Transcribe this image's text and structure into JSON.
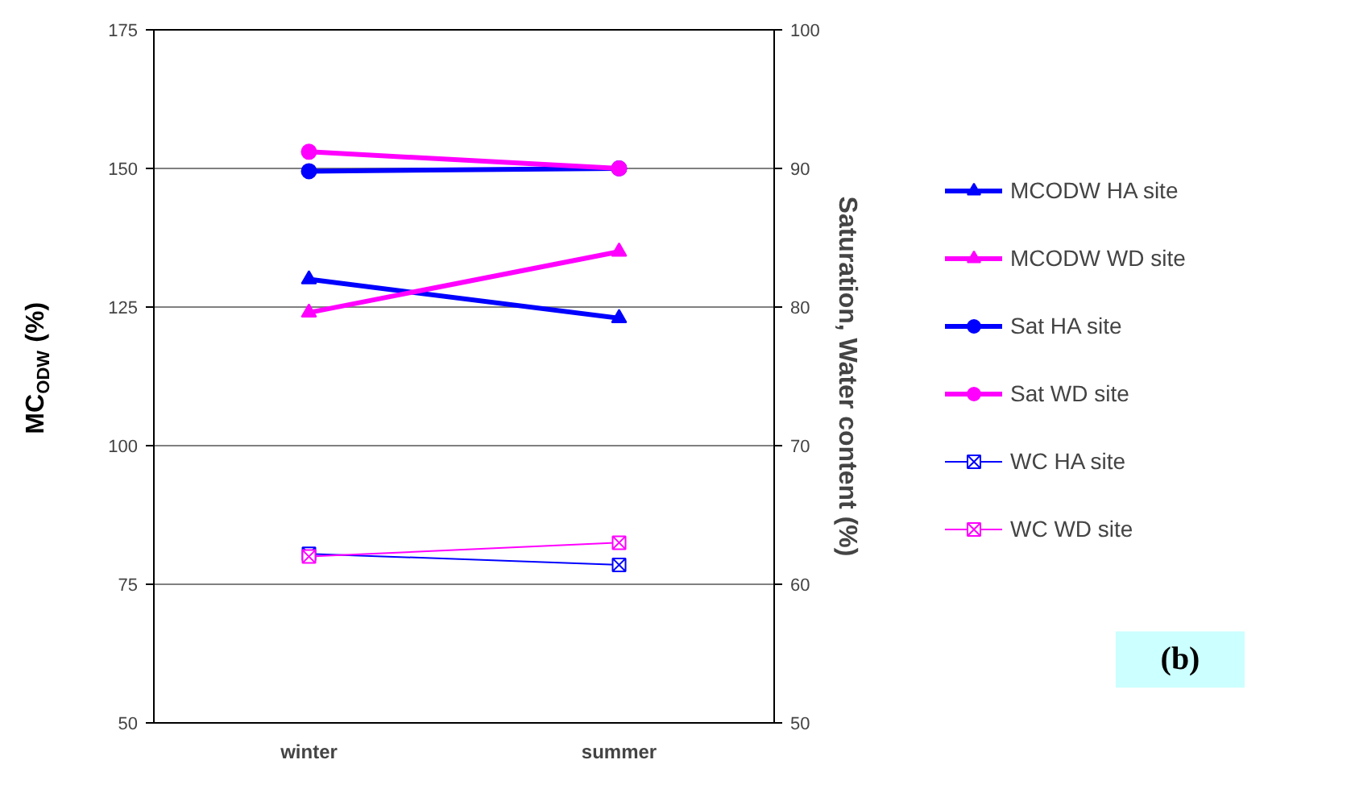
{
  "chart_data": {
    "type": "line",
    "ylabel": "MC$_{ODW}$ (%)",
    "y2label": "Saturation, Water content (%)",
    "categories": [
      "winter",
      "summer"
    ],
    "ylim": [
      50,
      175
    ],
    "yticks": [
      50,
      75,
      100,
      125,
      150,
      175
    ],
    "y2lim": [
      50,
      100
    ],
    "y2ticks": [
      50,
      60,
      70,
      80,
      90,
      100
    ],
    "grid": "y",
    "legend": "right",
    "annotations": [
      "(b)"
    ],
    "series": [
      {
        "name": "MCODW HA site",
        "color": "#0000ff",
        "marker": "triangle",
        "values": [
          130,
          123
        ]
      },
      {
        "name": "MCODW WD site",
        "color": "#ff00ff",
        "marker": "triangle",
        "values": [
          124,
          135
        ]
      },
      {
        "name": "Sat HA site",
        "color": "#0000ff",
        "marker": "circle",
        "axis": "y2",
        "values": [
          89.8,
          90
        ]
      },
      {
        "name": "Sat WD site",
        "color": "#ff00ff",
        "marker": "circle",
        "axis": "y2",
        "values": [
          91.2,
          90
        ]
      },
      {
        "name": "WC HA site",
        "color": "#0000ff",
        "marker": "cross",
        "axis": "y2",
        "values": [
          62.2,
          61.4
        ]
      },
      {
        "name": "WC WD site",
        "color": "#ff00ff",
        "marker": "cross",
        "axis": "y2",
        "values": [
          62,
          63
        ]
      }
    ]
  }
}
